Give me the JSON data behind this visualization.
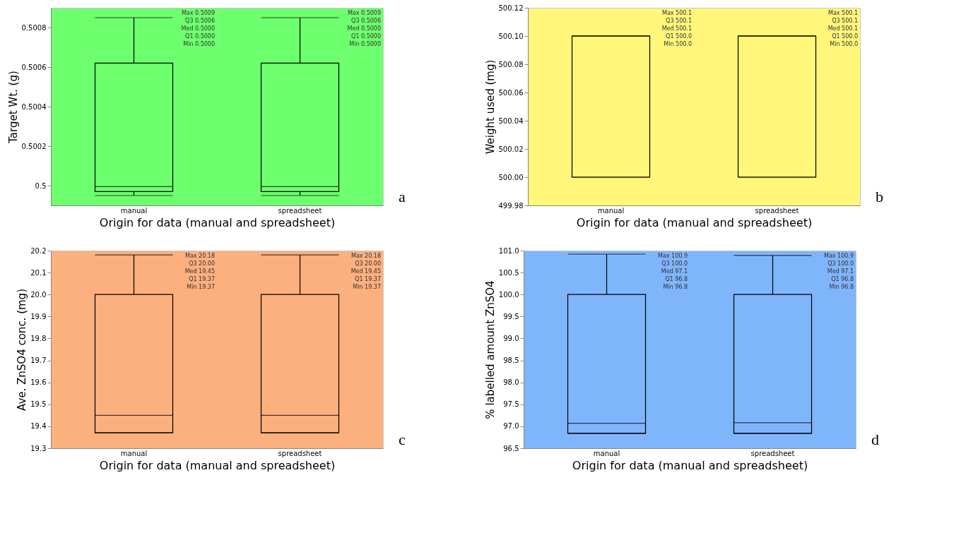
{
  "chart_data": [
    {
      "type": "box",
      "categories": [
        "manual",
        "spreadsheet"
      ],
      "xlabel": "Origin for data (manual and spreadsheet)",
      "ylabel": "Target Wt. (g)",
      "ylim": [
        0.4999,
        0.5009
      ],
      "yticks": [
        0.5,
        0.5002,
        0.5004,
        0.5006,
        0.5008
      ],
      "grid": false,
      "series": [
        {
          "color": "#6dff6d",
          "boxes": [
            {
              "low": 0.49995,
              "q1": 0.49997,
              "median": 0.499995,
              "q3": 0.50062,
              "high": 0.50085
            },
            {
              "low": 0.49995,
              "q1": 0.49997,
              "median": 0.499995,
              "q3": 0.50062,
              "high": 0.50085
            }
          ]
        }
      ],
      "annotations": [
        "Max 0.5009\nQ3  0.5006\nMed 0.5000\nQ1  0.5000\nMin 0.5000",
        "Max 0.5009\nQ3  0.5006\nMed 0.5000\nQ1  0.5000\nMin 0.5000",
        "a"
      ]
    },
    {
      "type": "box",
      "categories": [
        "manual",
        "spreadsheet"
      ],
      "xlabel": "Origin for data (manual and spreadsheet)",
      "ylabel": "Weight used (mg)",
      "ylim": [
        499.98,
        500.12
      ],
      "yticks": [
        {
          "value": 499.98,
          "label": "499.98"
        },
        {
          "value": 500.0,
          "label": "500.00"
        },
        {
          "value": 500.02,
          "label": "500.02"
        },
        {
          "value": 500.04,
          "label": "500.04"
        },
        {
          "value": 500.06,
          "label": "500.06"
        },
        {
          "value": 500.08,
          "label": "500.08"
        },
        {
          "value": 500.1,
          "label": "500.10"
        },
        {
          "value": 500.12,
          "label": "500.12"
        }
      ],
      "grid": false,
      "series": [
        {
          "color": "#fff67a",
          "boxes": [
            {
              "low": 500.0,
              "q1": 500.0,
              "median": 500.1,
              "q3": 500.1,
              "high": 500.1
            },
            {
              "low": 500.0,
              "q1": 500.0,
              "median": 500.1,
              "q3": 500.1,
              "high": 500.1
            }
          ]
        }
      ],
      "annotations": [
        "Max 500.1\nQ3  500.1\nMed 500.1\nQ1  500.0\nMin 500.0",
        "Max 500.1\nQ3  500.1\nMed 500.1\nQ1  500.0\nMin 500.0",
        "b"
      ]
    },
    {
      "type": "box",
      "categories": [
        "manual",
        "spreadsheet"
      ],
      "xlabel": "Origin for data (manual and spreadsheet)",
      "ylabel": "Ave. ZnSO4 conc. (mg)",
      "ylim": [
        19.3,
        20.2
      ],
      "yticks": [
        19.3,
        19.4,
        19.5,
        19.6,
        19.7,
        19.8,
        19.9,
        {
          "value": 20.0,
          "label": "20.0"
        },
        20.1,
        20.2
      ],
      "grid": false,
      "series": [
        {
          "color": "#fbb07e",
          "boxes": [
            {
              "low": 19.37,
              "q1": 19.37,
              "median": 19.45,
              "q3": 20.0,
              "high": 20.18
            },
            {
              "low": 19.37,
              "q1": 19.37,
              "median": 19.45,
              "q3": 20.0,
              "high": 20.18
            }
          ]
        }
      ],
      "annotations": [
        "Max 20.18\nQ3  20.00\nMed 19.45\nQ1  19.37\nMin 19.37",
        "Max 20.18\nQ3  20.00\nMed 19.45\nQ1  19.37\nMin 19.37",
        "c"
      ]
    },
    {
      "type": "box",
      "categories": [
        "manual",
        "spreadsheet"
      ],
      "xlabel": "Origin for data (manual and spreadsheet)",
      "ylabel": "% labelled amount  ZnSO4",
      "ylim": [
        96.5,
        101.0
      ],
      "yticks": [
        96.5,
        {
          "value": 97.0,
          "label": "97.0"
        },
        97.5,
        {
          "value": 98.0,
          "label": "98.0"
        },
        98.5,
        {
          "value": 99.0,
          "label": "99.0"
        },
        99.5,
        {
          "value": 100.0,
          "label": "100.0"
        },
        100.5,
        {
          "value": 101.0,
          "label": "101.0"
        }
      ],
      "grid": false,
      "series": [
        {
          "color": "#7fb5fb",
          "boxes": [
            {
              "low": 96.84,
              "q1": 96.84,
              "median": 97.07,
              "q3": 100.0,
              "high": 100.92
            },
            {
              "low": 96.84,
              "q1": 96.84,
              "median": 97.08,
              "q3": 100.0,
              "high": 100.89
            }
          ]
        }
      ],
      "annotations": [
        "Max 100.9\nQ3  100.0\nMed 97.1\nQ1  96.8\nMin 96.8",
        "Max 100.9\nQ3  100.0\nMed 97.1\nQ1  96.8\nMin 96.8",
        "d"
      ]
    }
  ]
}
